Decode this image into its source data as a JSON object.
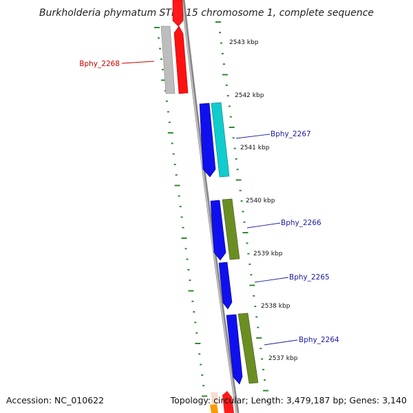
{
  "title": "Burkholderia phymatum STM815 chromosome 1, complete sequence",
  "footer": {
    "accession": "Accession: NC_010622",
    "summary": "Topology: circular; Length: 3,479,187 bp; Genes: 3,140"
  },
  "colors": {
    "backbone": "#808080",
    "tick_marks": "#2e8b2e",
    "highlight_label": "#cc0000",
    "gene_label": "#1a1aa0",
    "reverse_cds": "#ff0000",
    "forward_cds": "#0000ee",
    "gray_feature": "#b8b8b8",
    "cyan_feature": "#00cccc",
    "olive_feature": "#6b8e23"
  },
  "kbp_labels": [
    "2543 kbp",
    "2542 kbp",
    "2541 kbp",
    "2540 kbp",
    "2539 kbp",
    "2538 kbp",
    "2537 kbp"
  ],
  "gene_labels": [
    {
      "name": "Bphy_2268",
      "kind": "highlight"
    },
    {
      "name": "Bphy_2267",
      "kind": "normal"
    },
    {
      "name": "Bphy_2266",
      "kind": "normal"
    },
    {
      "name": "Bphy_2265",
      "kind": "normal"
    },
    {
      "name": "Bphy_2264",
      "kind": "normal"
    }
  ]
}
